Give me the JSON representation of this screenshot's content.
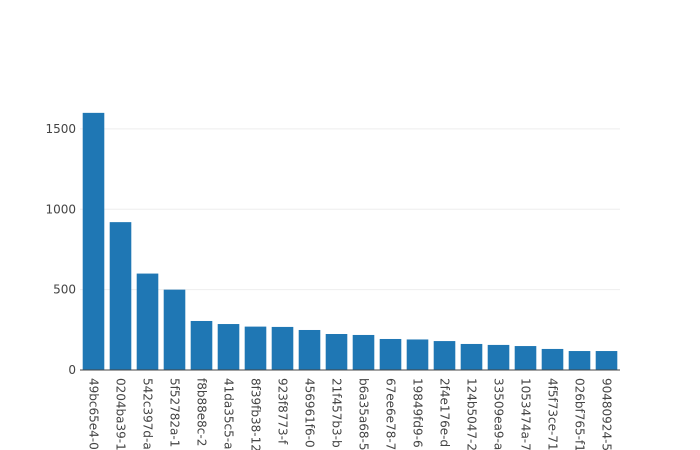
{
  "chart_data": {
    "type": "bar",
    "categories": [
      "49bc65e4-0",
      "0204ba39-1",
      "542c397d-a",
      "5f52782a-1",
      "f8b88e8c-2",
      "41da35c5-a",
      "8f39fb38-12",
      "923f8773-f",
      "456961f6-0",
      "21f457b3-b",
      "b6a35a68-5",
      "67ee6e78-7",
      "19849fd9-6",
      "2f4e176e-d",
      "124b5047-2",
      "33509ea9-a",
      "1053474a-7",
      "4f5f73ce-71",
      "026bf765-f1",
      "90480924-5"
    ],
    "values": [
      1600,
      920,
      600,
      500,
      305,
      286,
      270,
      268,
      249,
      224,
      218,
      193,
      190,
      180,
      162,
      156,
      149,
      131,
      118,
      118
    ],
    "color": "#1f77b4",
    "ylim": [
      0,
      1680
    ],
    "yticks": [
      0,
      500,
      1000,
      1500
    ],
    "grid": true
  }
}
